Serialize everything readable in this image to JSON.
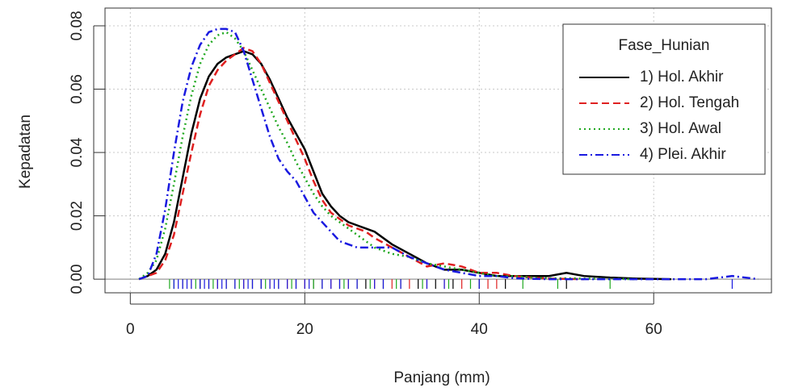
{
  "chart_data": {
    "type": "line",
    "xlabel": "Panjang (mm)",
    "ylabel": "Kepadatan",
    "legend_title": "Fase_Hunian",
    "legend": "topright",
    "grid": true,
    "xlim": [
      -2.9,
      73.5
    ],
    "ylim": [
      -0.0043,
      0.0856
    ],
    "xticks": [
      0,
      20,
      40,
      60
    ],
    "yticks": [
      {
        "value": 0,
        "label": "0.00"
      },
      {
        "value": 0.02,
        "label": "0.02"
      },
      {
        "value": 0.04,
        "label": "0.04"
      },
      {
        "value": 0.06,
        "label": "0.06"
      },
      {
        "value": 0.08,
        "label": "0.08"
      }
    ],
    "x": [
      1,
      2,
      3,
      4,
      5,
      6,
      7,
      8,
      9,
      10,
      11,
      12,
      13,
      14,
      15,
      16,
      17,
      18,
      19,
      20,
      21,
      22,
      23,
      24,
      25,
      26,
      27,
      28,
      30,
      32,
      34,
      36,
      38,
      40,
      42,
      44,
      46,
      48,
      50,
      52,
      55,
      58,
      62,
      66,
      69,
      72
    ],
    "series": [
      {
        "name": "1) Hol. Akhir",
        "color": "#000000",
        "dash": "none",
        "values": [
          0,
          0.001,
          0.003,
          0.008,
          0.018,
          0.032,
          0.046,
          0.057,
          0.064,
          0.068,
          0.07,
          0.071,
          0.072,
          0.071,
          0.068,
          0.063,
          0.057,
          0.051,
          0.046,
          0.041,
          0.034,
          0.027,
          0.023,
          0.02,
          0.018,
          0.017,
          0.016,
          0.015,
          0.011,
          0.008,
          0.005,
          0.003,
          0.003,
          0.002,
          0.001,
          0.001,
          0.001,
          0.001,
          0.002,
          0.001,
          0.0005,
          0.0002,
          0,
          null,
          null,
          null
        ],
        "rug": [
          6,
          8,
          9,
          11,
          12,
          14,
          15,
          17,
          19,
          21,
          22,
          24,
          26,
          27,
          29,
          31,
          33,
          35,
          37,
          40,
          43,
          50
        ]
      },
      {
        "name": "2) Hol. Tengah",
        "color": "#df2020",
        "dash": "9,5",
        "values": [
          0,
          0.001,
          0.002,
          0.006,
          0.014,
          0.027,
          0.04,
          0.052,
          0.061,
          0.066,
          0.069,
          0.071,
          0.073,
          0.072,
          0.068,
          0.062,
          0.056,
          0.05,
          0.044,
          0.038,
          0.031,
          0.025,
          0.021,
          0.019,
          0.017,
          0.016,
          0.015,
          0.013,
          0.01,
          0.007,
          0.004,
          0.005,
          0.004,
          0.002,
          0.002,
          0.001,
          0.0005,
          0.0002,
          0.0001,
          0,
          null,
          null,
          null,
          null,
          null,
          null
        ],
        "rug": [
          7,
          10,
          13,
          16,
          18,
          20,
          23,
          25,
          28,
          30,
          32,
          34,
          36,
          38,
          41,
          42
        ]
      },
      {
        "name": "3) Hol. Awal",
        "color": "#1fa81f",
        "dash": "2,4",
        "values": [
          0,
          0.002,
          0.006,
          0.016,
          0.03,
          0.045,
          0.058,
          0.068,
          0.074,
          0.077,
          0.078,
          0.076,
          0.072,
          0.066,
          0.06,
          0.054,
          0.048,
          0.043,
          0.037,
          0.032,
          0.027,
          0.023,
          0.02,
          0.018,
          0.016,
          0.014,
          0.012,
          0.01,
          0.008,
          0.007,
          0.005,
          0.004,
          0.003,
          0.002,
          0.001,
          0.001,
          0.0005,
          0.0003,
          0.0003,
          0.0002,
          0.0001,
          0,
          null,
          null,
          null,
          null
        ],
        "rug": [
          4.5,
          5,
          7.5,
          9.5,
          12.5,
          15.5,
          18.5,
          21,
          24.5,
          27.5,
          30.5,
          33.5,
          36.5,
          39,
          45,
          49,
          55
        ]
      },
      {
        "name": "4) Plei. Akhir",
        "color": "#1a1ae0",
        "dash": "10,4,2,4",
        "values": [
          0,
          0.001,
          0.008,
          0.022,
          0.04,
          0.056,
          0.067,
          0.074,
          0.078,
          0.079,
          0.079,
          0.078,
          0.072,
          0.063,
          0.054,
          0.045,
          0.038,
          0.034,
          0.031,
          0.026,
          0.021,
          0.018,
          0.015,
          0.012,
          0.011,
          0.01,
          0.01,
          0.01,
          0.01,
          0.007,
          0.005,
          0.003,
          0.002,
          0.001,
          0.001,
          0.0003,
          0.0001,
          0,
          0,
          0,
          0,
          0,
          0,
          0,
          0.001,
          0
        ],
        "rug": [
          5,
          5.5,
          6,
          6.5,
          7,
          8,
          8.5,
          9,
          10,
          10.5,
          11,
          12,
          13,
          13.5,
          14,
          15,
          16,
          16.5,
          17,
          18,
          19,
          20,
          20.5,
          22,
          23,
          24,
          25,
          26,
          28,
          29,
          31,
          34,
          36,
          40,
          69
        ]
      }
    ]
  }
}
